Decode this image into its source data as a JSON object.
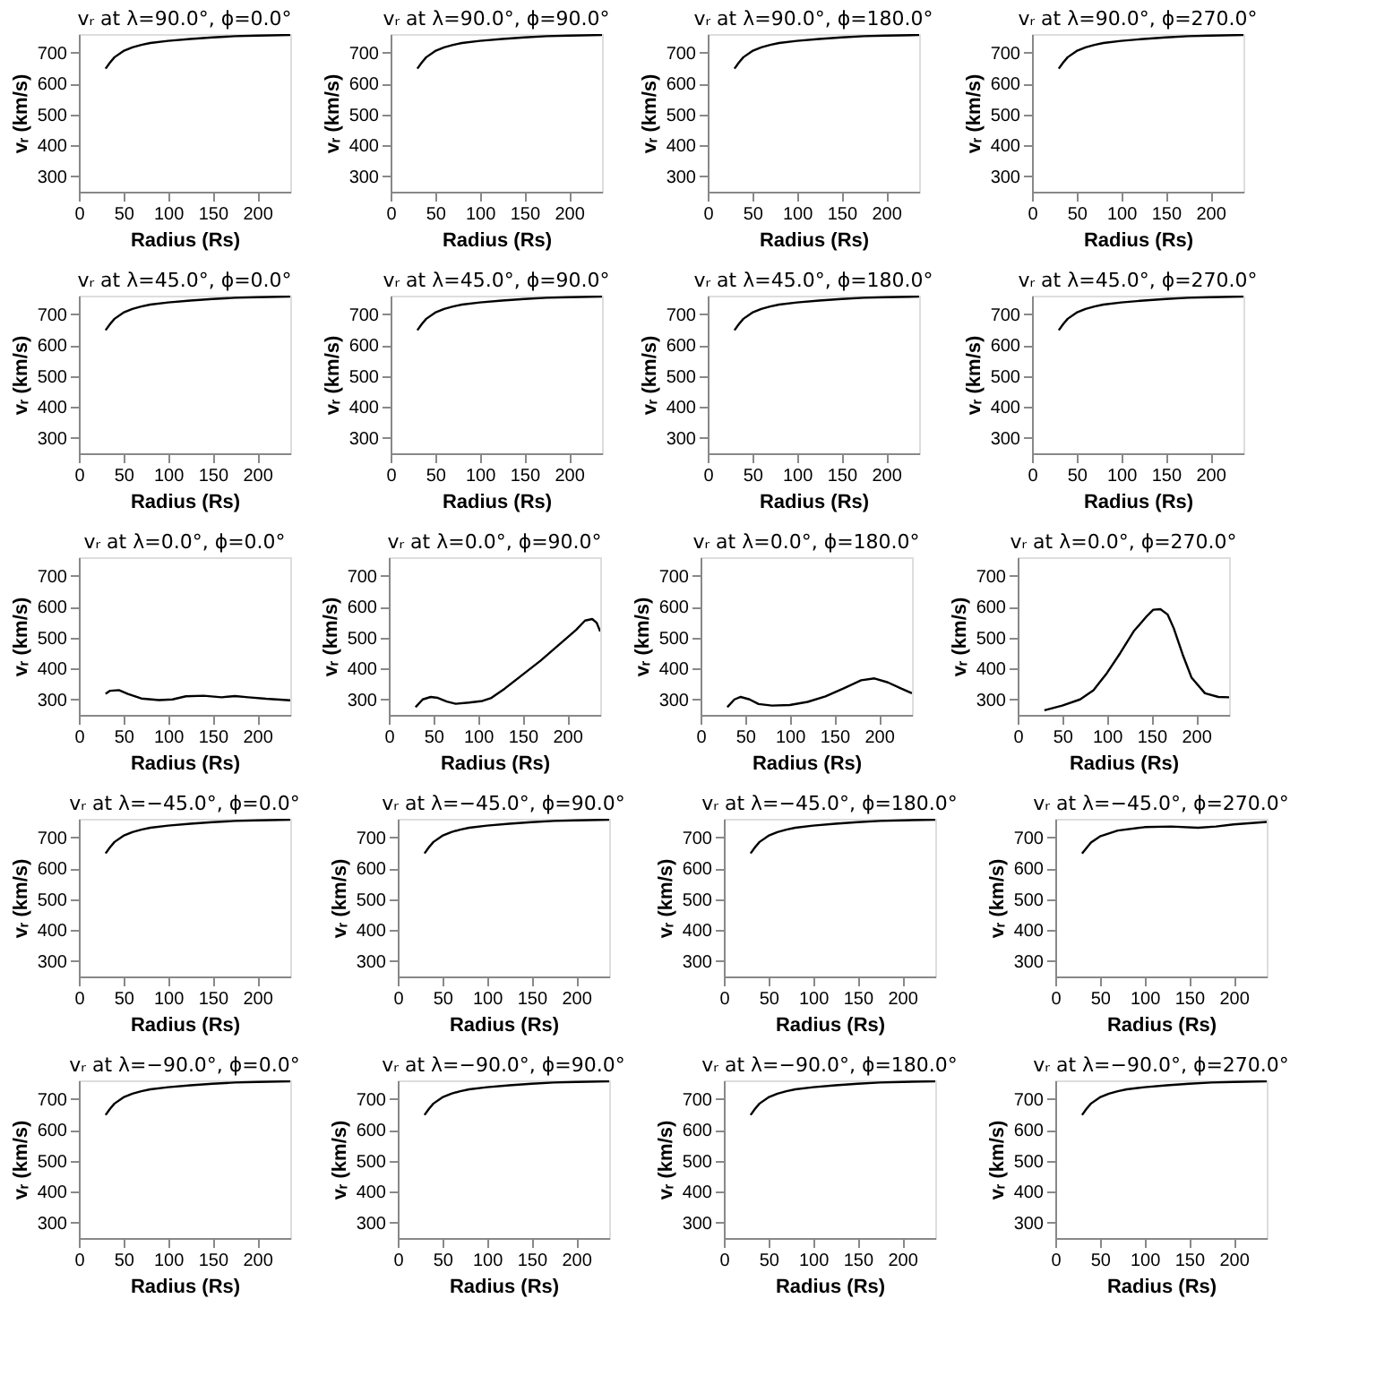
{
  "chart_data": [
    {
      "type": "line",
      "title": "vᵣ at λ=90.0°, ϕ=0.0°",
      "xlabel": "Radius (Rs)",
      "ylabel": "vᵣ (km/s)",
      "xlim": [
        0,
        237
      ],
      "ylim": [
        250,
        760
      ],
      "xticks": [
        0,
        50,
        100,
        150,
        200
      ],
      "yticks": [
        300,
        400,
        500,
        600,
        700
      ],
      "x": [
        30,
        35,
        40,
        50,
        60,
        70,
        80,
        100,
        125,
        150,
        175,
        200,
        237
      ],
      "series": [
        {
          "color": "#000000",
          "values": [
            648,
            668,
            685,
            705,
            717,
            725,
            731,
            738,
            744,
            749,
            753,
            755,
            757
          ]
        }
      ]
    },
    {
      "type": "line",
      "title": "vᵣ at λ=90.0°, ϕ=90.0°",
      "xlabel": "Radius (Rs)",
      "ylabel": "vᵣ (km/s)",
      "xlim": [
        0,
        237
      ],
      "ylim": [
        250,
        760
      ],
      "xticks": [
        0,
        50,
        100,
        150,
        200
      ],
      "yticks": [
        300,
        400,
        500,
        600,
        700
      ],
      "x": [
        30,
        35,
        40,
        50,
        60,
        70,
        80,
        100,
        125,
        150,
        175,
        200,
        237
      ],
      "series": [
        {
          "color": "#000000",
          "values": [
            648,
            668,
            685,
            705,
            717,
            725,
            731,
            738,
            744,
            749,
            753,
            755,
            757
          ]
        }
      ]
    },
    {
      "type": "line",
      "title": "vᵣ at λ=90.0°, ϕ=180.0°",
      "xlabel": "Radius (Rs)",
      "ylabel": "vᵣ (km/s)",
      "xlim": [
        0,
        237
      ],
      "ylim": [
        250,
        760
      ],
      "xticks": [
        0,
        50,
        100,
        150,
        200
      ],
      "yticks": [
        300,
        400,
        500,
        600,
        700
      ],
      "x": [
        30,
        35,
        40,
        50,
        60,
        70,
        80,
        100,
        125,
        150,
        175,
        200,
        237
      ],
      "series": [
        {
          "color": "#000000",
          "values": [
            648,
            668,
            685,
            705,
            717,
            725,
            731,
            738,
            744,
            749,
            753,
            755,
            757
          ]
        }
      ]
    },
    {
      "type": "line",
      "title": "vᵣ at λ=90.0°, ϕ=270.0°",
      "xlabel": "Radius (Rs)",
      "ylabel": "vᵣ (km/s)",
      "xlim": [
        0,
        237
      ],
      "ylim": [
        250,
        760
      ],
      "xticks": [
        0,
        50,
        100,
        150,
        200
      ],
      "yticks": [
        300,
        400,
        500,
        600,
        700
      ],
      "x": [
        30,
        35,
        40,
        50,
        60,
        70,
        80,
        100,
        125,
        150,
        175,
        200,
        237
      ],
      "series": [
        {
          "color": "#000000",
          "values": [
            648,
            668,
            685,
            705,
            717,
            725,
            731,
            738,
            744,
            749,
            753,
            755,
            757
          ]
        }
      ]
    },
    {
      "type": "line",
      "title": "vᵣ at λ=45.0°, ϕ=0.0°",
      "xlabel": "Radius (Rs)",
      "ylabel": "vᵣ (km/s)",
      "xlim": [
        0,
        237
      ],
      "ylim": [
        250,
        760
      ],
      "xticks": [
        0,
        50,
        100,
        150,
        200
      ],
      "yticks": [
        300,
        400,
        500,
        600,
        700
      ],
      "x": [
        30,
        35,
        40,
        50,
        60,
        70,
        80,
        100,
        125,
        150,
        175,
        200,
        237
      ],
      "series": [
        {
          "color": "#000000",
          "values": [
            648,
            668,
            685,
            705,
            717,
            725,
            731,
            738,
            744,
            749,
            753,
            755,
            757
          ]
        }
      ]
    },
    {
      "type": "line",
      "title": "vᵣ at λ=45.0°, ϕ=90.0°",
      "xlabel": "Radius (Rs)",
      "ylabel": "vᵣ (km/s)",
      "xlim": [
        0,
        237
      ],
      "ylim": [
        250,
        760
      ],
      "xticks": [
        0,
        50,
        100,
        150,
        200
      ],
      "yticks": [
        300,
        400,
        500,
        600,
        700
      ],
      "x": [
        30,
        35,
        40,
        50,
        60,
        70,
        80,
        100,
        125,
        150,
        175,
        200,
        237
      ],
      "series": [
        {
          "color": "#000000",
          "values": [
            648,
            668,
            685,
            705,
            717,
            725,
            731,
            738,
            744,
            749,
            753,
            755,
            757
          ]
        }
      ]
    },
    {
      "type": "line",
      "title": "vᵣ at λ=45.0°, ϕ=180.0°",
      "xlabel": "Radius (Rs)",
      "ylabel": "vᵣ (km/s)",
      "xlim": [
        0,
        237
      ],
      "ylim": [
        250,
        760
      ],
      "xticks": [
        0,
        50,
        100,
        150,
        200
      ],
      "yticks": [
        300,
        400,
        500,
        600,
        700
      ],
      "x": [
        30,
        35,
        40,
        50,
        60,
        70,
        80,
        100,
        125,
        150,
        175,
        200,
        237
      ],
      "series": [
        {
          "color": "#000000",
          "values": [
            648,
            668,
            685,
            705,
            717,
            725,
            731,
            738,
            744,
            749,
            753,
            755,
            757
          ]
        }
      ]
    },
    {
      "type": "line",
      "title": "vᵣ at λ=45.0°, ϕ=270.0°",
      "xlabel": "Radius (Rs)",
      "ylabel": "vᵣ (km/s)",
      "xlim": [
        0,
        237
      ],
      "ylim": [
        250,
        760
      ],
      "xticks": [
        0,
        50,
        100,
        150,
        200
      ],
      "yticks": [
        300,
        400,
        500,
        600,
        700
      ],
      "x": [
        30,
        35,
        40,
        50,
        60,
        70,
        80,
        100,
        125,
        150,
        175,
        200,
        237
      ],
      "series": [
        {
          "color": "#000000",
          "values": [
            648,
            668,
            685,
            705,
            717,
            725,
            731,
            738,
            744,
            749,
            753,
            755,
            757
          ]
        }
      ]
    },
    {
      "type": "line",
      "title": "vᵣ at λ=0.0°, ϕ=0.0°",
      "xlabel": "Radius (Rs)",
      "ylabel": "vᵣ (km/s)",
      "xlim": [
        0,
        237
      ],
      "ylim": [
        250,
        760
      ],
      "xticks": [
        0,
        50,
        100,
        150,
        200
      ],
      "yticks": [
        300,
        400,
        500,
        600,
        700
      ],
      "x": [
        30,
        35,
        45,
        55,
        70,
        90,
        105,
        120,
        140,
        160,
        175,
        190,
        210,
        237
      ],
      "series": [
        {
          "color": "#000000",
          "values": [
            318,
            328,
            330,
            318,
            303,
            298,
            300,
            310,
            312,
            307,
            311,
            307,
            302,
            297
          ]
        }
      ]
    },
    {
      "type": "line",
      "title": "vᵣ at λ=0.0°, ϕ=90.0°",
      "xlabel": "Radius (Rs)",
      "ylabel": "vᵣ (km/s)",
      "xlim": [
        0,
        237
      ],
      "ylim": [
        250,
        760
      ],
      "xticks": [
        0,
        50,
        100,
        150,
        200
      ],
      "yticks": [
        300,
        400,
        500,
        600,
        700
      ],
      "x": [
        30,
        38,
        47,
        55,
        65,
        75,
        90,
        105,
        115,
        130,
        150,
        170,
        190,
        210,
        220,
        228,
        233,
        237
      ],
      "series": [
        {
          "color": "#000000",
          "values": [
            275,
            300,
            308,
            305,
            293,
            286,
            290,
            295,
            305,
            335,
            380,
            425,
            475,
            525,
            555,
            560,
            548,
            520
          ]
        }
      ]
    },
    {
      "type": "line",
      "title": "vᵣ at λ=0.0°, ϕ=180.0°",
      "xlabel": "Radius (Rs)",
      "ylabel": "vᵣ (km/s)",
      "xlim": [
        0,
        237
      ],
      "ylim": [
        250,
        760
      ],
      "xticks": [
        0,
        50,
        100,
        150,
        200
      ],
      "yticks": [
        300,
        400,
        500,
        600,
        700
      ],
      "x": [
        30,
        38,
        45,
        55,
        65,
        80,
        100,
        120,
        140,
        160,
        180,
        195,
        210,
        225,
        237
      ],
      "series": [
        {
          "color": "#000000",
          "values": [
            275,
            300,
            308,
            300,
            285,
            280,
            282,
            292,
            310,
            335,
            362,
            368,
            355,
            335,
            320
          ]
        }
      ]
    },
    {
      "type": "line",
      "title": "vᵣ at λ=0.0°, ϕ=270.0°",
      "xlabel": "Radius (Rs)",
      "ylabel": "vᵣ (km/s)",
      "xlim": [
        0,
        237
      ],
      "ylim": [
        250,
        760
      ],
      "xticks": [
        0,
        50,
        100,
        150,
        200
      ],
      "yticks": [
        300,
        400,
        500,
        600,
        700
      ],
      "x": [
        30,
        50,
        70,
        85,
        100,
        115,
        130,
        145,
        152,
        160,
        168,
        175,
        185,
        195,
        210,
        225,
        237
      ],
      "series": [
        {
          "color": "#000000",
          "values": [
            265,
            280,
            300,
            330,
            385,
            450,
            520,
            570,
            590,
            592,
            575,
            530,
            445,
            370,
            320,
            308,
            307
          ]
        }
      ]
    },
    {
      "type": "line",
      "title": "vᵣ at λ=−45.0°, ϕ=0.0°",
      "xlabel": "Radius (Rs)",
      "ylabel": "vᵣ (km/s)",
      "xlim": [
        0,
        237
      ],
      "ylim": [
        250,
        760
      ],
      "xticks": [
        0,
        50,
        100,
        150,
        200
      ],
      "yticks": [
        300,
        400,
        500,
        600,
        700
      ],
      "x": [
        30,
        35,
        40,
        50,
        60,
        70,
        80,
        100,
        125,
        150,
        175,
        200,
        237
      ],
      "series": [
        {
          "color": "#000000",
          "values": [
            648,
            668,
            685,
            705,
            717,
            725,
            731,
            738,
            744,
            749,
            753,
            755,
            757
          ]
        }
      ]
    },
    {
      "type": "line",
      "title": "vᵣ at λ=−45.0°, ϕ=90.0°",
      "xlabel": "Radius (Rs)",
      "ylabel": "vᵣ (km/s)",
      "xlim": [
        0,
        237
      ],
      "ylim": [
        250,
        760
      ],
      "xticks": [
        0,
        50,
        100,
        150,
        200
      ],
      "yticks": [
        300,
        400,
        500,
        600,
        700
      ],
      "x": [
        30,
        35,
        40,
        50,
        60,
        70,
        80,
        100,
        125,
        150,
        175,
        200,
        237
      ],
      "series": [
        {
          "color": "#000000",
          "values": [
            648,
            668,
            685,
            705,
            717,
            725,
            731,
            738,
            744,
            749,
            753,
            755,
            757
          ]
        }
      ]
    },
    {
      "type": "line",
      "title": "vᵣ at λ=−45.0°, ϕ=180.0°",
      "xlabel": "Radius (Rs)",
      "ylabel": "vᵣ (km/s)",
      "xlim": [
        0,
        237
      ],
      "ylim": [
        250,
        760
      ],
      "xticks": [
        0,
        50,
        100,
        150,
        200
      ],
      "yticks": [
        300,
        400,
        500,
        600,
        700
      ],
      "x": [
        30,
        35,
        40,
        50,
        60,
        70,
        80,
        100,
        125,
        150,
        175,
        200,
        237
      ],
      "series": [
        {
          "color": "#000000",
          "values": [
            648,
            668,
            685,
            705,
            717,
            725,
            731,
            738,
            744,
            749,
            753,
            755,
            757
          ]
        }
      ]
    },
    {
      "type": "line",
      "title": "vᵣ at λ=−45.0°, ϕ=270.0°",
      "xlabel": "Radius (Rs)",
      "ylabel": "vᵣ (km/s)",
      "xlim": [
        0,
        237
      ],
      "ylim": [
        250,
        760
      ],
      "xticks": [
        0,
        50,
        100,
        150,
        200
      ],
      "yticks": [
        300,
        400,
        500,
        600,
        700
      ],
      "x": [
        30,
        40,
        50,
        70,
        100,
        130,
        160,
        180,
        200,
        237
      ],
      "series": [
        {
          "color": "#000000",
          "values": [
            648,
            683,
            703,
            722,
            733,
            735,
            731,
            735,
            742,
            750
          ]
        }
      ]
    },
    {
      "type": "line",
      "title": "vᵣ at λ=−90.0°, ϕ=0.0°",
      "xlabel": "Radius (Rs)",
      "ylabel": "vᵣ (km/s)",
      "xlim": [
        0,
        237
      ],
      "ylim": [
        250,
        760
      ],
      "xticks": [
        0,
        50,
        100,
        150,
        200
      ],
      "yticks": [
        300,
        400,
        500,
        600,
        700
      ],
      "x": [
        30,
        35,
        40,
        50,
        60,
        70,
        80,
        100,
        125,
        150,
        175,
        200,
        237
      ],
      "series": [
        {
          "color": "#000000",
          "values": [
            648,
            668,
            685,
            705,
            717,
            725,
            731,
            738,
            744,
            749,
            753,
            755,
            757
          ]
        }
      ]
    },
    {
      "type": "line",
      "title": "vᵣ at λ=−90.0°, ϕ=90.0°",
      "xlabel": "Radius (Rs)",
      "ylabel": "vᵣ (km/s)",
      "xlim": [
        0,
        237
      ],
      "ylim": [
        250,
        760
      ],
      "xticks": [
        0,
        50,
        100,
        150,
        200
      ],
      "yticks": [
        300,
        400,
        500,
        600,
        700
      ],
      "x": [
        30,
        35,
        40,
        50,
        60,
        70,
        80,
        100,
        125,
        150,
        175,
        200,
        237
      ],
      "series": [
        {
          "color": "#000000",
          "values": [
            648,
            668,
            685,
            705,
            717,
            725,
            731,
            738,
            744,
            749,
            753,
            755,
            757
          ]
        }
      ]
    },
    {
      "type": "line",
      "title": "vᵣ at λ=−90.0°, ϕ=180.0°",
      "xlabel": "Radius (Rs)",
      "ylabel": "vᵣ (km/s)",
      "xlim": [
        0,
        237
      ],
      "ylim": [
        250,
        760
      ],
      "xticks": [
        0,
        50,
        100,
        150,
        200
      ],
      "yticks": [
        300,
        400,
        500,
        600,
        700
      ],
      "x": [
        30,
        35,
        40,
        50,
        60,
        70,
        80,
        100,
        125,
        150,
        175,
        200,
        237
      ],
      "series": [
        {
          "color": "#000000",
          "values": [
            648,
            668,
            685,
            705,
            717,
            725,
            731,
            738,
            744,
            749,
            753,
            755,
            757
          ]
        }
      ]
    },
    {
      "type": "line",
      "title": "vᵣ at λ=−90.0°, ϕ=270.0°",
      "xlabel": "Radius (Rs)",
      "ylabel": "vᵣ (km/s)",
      "xlim": [
        0,
        237
      ],
      "ylim": [
        250,
        760
      ],
      "xticks": [
        0,
        50,
        100,
        150,
        200
      ],
      "yticks": [
        300,
        400,
        500,
        600,
        700
      ],
      "x": [
        30,
        35,
        40,
        50,
        60,
        70,
        80,
        100,
        125,
        150,
        175,
        200,
        237
      ],
      "series": [
        {
          "color": "#000000",
          "values": [
            648,
            668,
            685,
            705,
            717,
            725,
            731,
            738,
            744,
            749,
            753,
            755,
            757
          ]
        }
      ]
    }
  ]
}
